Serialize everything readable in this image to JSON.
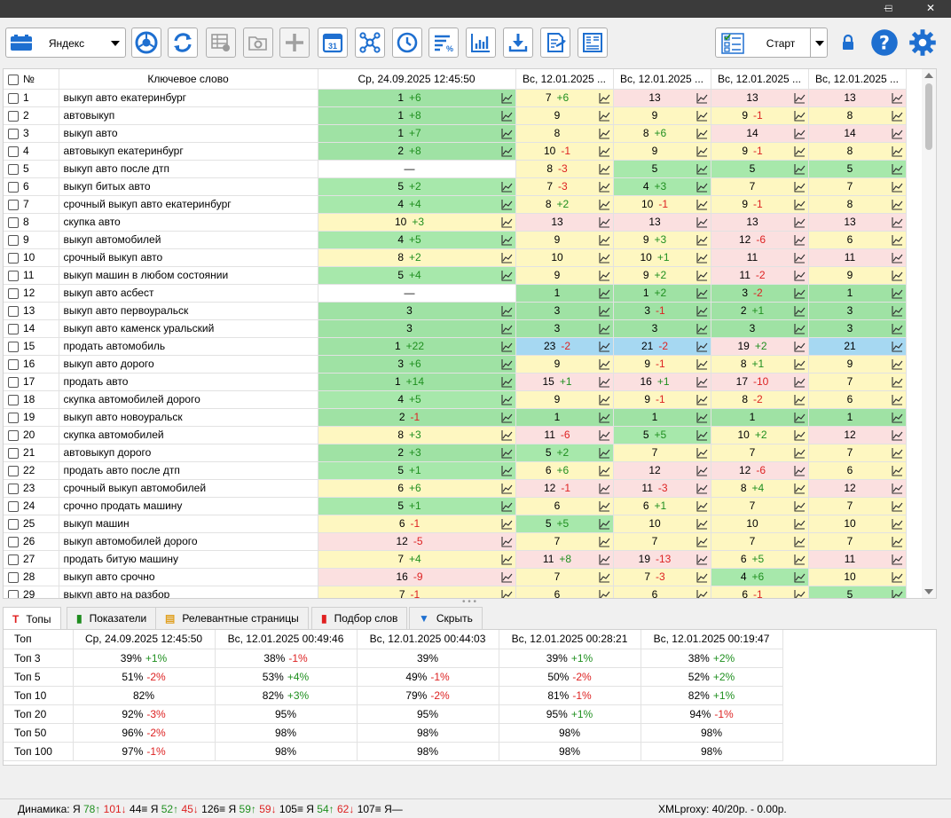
{
  "window_controls": {
    "minimize": "─",
    "maximize": "□",
    "close": "✕"
  },
  "toolbar": {
    "engine_label": "Яндекс",
    "start_label": "Старт",
    "icons": [
      "chrome-icon",
      "refresh-icon",
      "table-settings-icon",
      "folder-settings-icon",
      "add-icon",
      "calendar-icon",
      "network-icon",
      "clock-icon",
      "sort-percent-icon",
      "chart-bar-icon",
      "download-icon",
      "export-icon",
      "report-icon"
    ],
    "calendar_day": "31"
  },
  "grid": {
    "header_num": "№",
    "header_keyword": "Ключевое слово",
    "columns": [
      "Ср, 24.09.2025 12:45:50",
      "Вс, 12.01.2025 ...",
      "Вс, 12.01.2025 ...",
      "Вс, 12.01.2025 ...",
      "Вс, 12.01.2025 ..."
    ],
    "rows": [
      {
        "n": "1",
        "kw": "выкуп авто екатеринбург",
        "c": [
          [
            "1",
            "+6",
            "G"
          ],
          [
            "7",
            "+6",
            "Y"
          ],
          [
            "13",
            "",
            "P"
          ],
          [
            "13",
            "",
            "P"
          ],
          [
            "13",
            "",
            "P"
          ]
        ]
      },
      {
        "n": "2",
        "kw": "автовыкуп",
        "c": [
          [
            "1",
            "+8",
            "G"
          ],
          [
            "9",
            "",
            "Y"
          ],
          [
            "9",
            "",
            "Y"
          ],
          [
            "9",
            "-1",
            "Y"
          ],
          [
            "8",
            "",
            "Y"
          ]
        ]
      },
      {
        "n": "3",
        "kw": "выкуп авто",
        "c": [
          [
            "1",
            "+7",
            "G"
          ],
          [
            "8",
            "",
            "Y"
          ],
          [
            "8",
            "+6",
            "Y"
          ],
          [
            "14",
            "",
            "P"
          ],
          [
            "14",
            "",
            "P"
          ]
        ]
      },
      {
        "n": "4",
        "kw": "автовыкуп екатеринбург",
        "c": [
          [
            "2",
            "+8",
            "G"
          ],
          [
            "10",
            "-1",
            "Y"
          ],
          [
            "9",
            "",
            "Y"
          ],
          [
            "9",
            "-1",
            "Y"
          ],
          [
            "8",
            "",
            "Y"
          ]
        ]
      },
      {
        "n": "5",
        "kw": "выкуп авто после дтп",
        "c": [
          [
            "—",
            "",
            "W"
          ],
          [
            "8",
            "-3",
            "Y"
          ],
          [
            "5",
            "",
            "L"
          ],
          [
            "5",
            "",
            "L"
          ],
          [
            "5",
            "",
            "L"
          ]
        ]
      },
      {
        "n": "6",
        "kw": "выкуп битых авто",
        "c": [
          [
            "5",
            "+2",
            "L"
          ],
          [
            "7",
            "-3",
            "Y"
          ],
          [
            "4",
            "+3",
            "L"
          ],
          [
            "7",
            "",
            "Y"
          ],
          [
            "7",
            "",
            "Y"
          ]
        ]
      },
      {
        "n": "7",
        "kw": "срочный выкуп авто екатеринбург",
        "c": [
          [
            "4",
            "+4",
            "L"
          ],
          [
            "8",
            "+2",
            "Y"
          ],
          [
            "10",
            "-1",
            "Y"
          ],
          [
            "9",
            "-1",
            "Y"
          ],
          [
            "8",
            "",
            "Y"
          ]
        ]
      },
      {
        "n": "8",
        "kw": "скупка авто",
        "c": [
          [
            "10",
            "+3",
            "Y"
          ],
          [
            "13",
            "",
            "P"
          ],
          [
            "13",
            "",
            "P"
          ],
          [
            "13",
            "",
            "P"
          ],
          [
            "13",
            "",
            "P"
          ]
        ]
      },
      {
        "n": "9",
        "kw": "выкуп автомобилей",
        "c": [
          [
            "4",
            "+5",
            "L"
          ],
          [
            "9",
            "",
            "Y"
          ],
          [
            "9",
            "+3",
            "Y"
          ],
          [
            "12",
            "-6",
            "P"
          ],
          [
            "6",
            "",
            "Y"
          ]
        ]
      },
      {
        "n": "10",
        "kw": "срочный выкуп авто",
        "c": [
          [
            "8",
            "+2",
            "Y"
          ],
          [
            "10",
            "",
            "Y"
          ],
          [
            "10",
            "+1",
            "Y"
          ],
          [
            "11",
            "",
            "P"
          ],
          [
            "11",
            "",
            "P"
          ]
        ]
      },
      {
        "n": "11",
        "kw": "выкуп машин в любом состоянии",
        "c": [
          [
            "5",
            "+4",
            "L"
          ],
          [
            "9",
            "",
            "Y"
          ],
          [
            "9",
            "+2",
            "Y"
          ],
          [
            "11",
            "-2",
            "P"
          ],
          [
            "9",
            "",
            "Y"
          ]
        ]
      },
      {
        "n": "12",
        "kw": "выкуп авто асбест",
        "c": [
          [
            "—",
            "",
            "W"
          ],
          [
            "1",
            "",
            "G"
          ],
          [
            "1",
            "+2",
            "G"
          ],
          [
            "3",
            "-2",
            "G"
          ],
          [
            "1",
            "",
            "G"
          ]
        ]
      },
      {
        "n": "13",
        "kw": "выкуп авто первоуральск",
        "c": [
          [
            "3",
            "",
            "G"
          ],
          [
            "3",
            "",
            "G"
          ],
          [
            "3",
            "-1",
            "G"
          ],
          [
            "2",
            "+1",
            "G"
          ],
          [
            "3",
            "",
            "G"
          ]
        ]
      },
      {
        "n": "14",
        "kw": "выкуп авто каменск уральский",
        "c": [
          [
            "3",
            "",
            "G"
          ],
          [
            "3",
            "",
            "G"
          ],
          [
            "3",
            "",
            "G"
          ],
          [
            "3",
            "",
            "G"
          ],
          [
            "3",
            "",
            "G"
          ]
        ]
      },
      {
        "n": "15",
        "kw": "продать автомобиль",
        "c": [
          [
            "1",
            "+22",
            "G"
          ],
          [
            "23",
            "-2",
            "B"
          ],
          [
            "21",
            "-2",
            "B"
          ],
          [
            "19",
            "+2",
            "P"
          ],
          [
            "21",
            "",
            "B"
          ]
        ]
      },
      {
        "n": "16",
        "kw": "выкуп авто дорого",
        "c": [
          [
            "3",
            "+6",
            "G"
          ],
          [
            "9",
            "",
            "Y"
          ],
          [
            "9",
            "-1",
            "Y"
          ],
          [
            "8",
            "+1",
            "Y"
          ],
          [
            "9",
            "",
            "Y"
          ]
        ]
      },
      {
        "n": "17",
        "kw": "продать авто",
        "c": [
          [
            "1",
            "+14",
            "G"
          ],
          [
            "15",
            "+1",
            "P"
          ],
          [
            "16",
            "+1",
            "P"
          ],
          [
            "17",
            "-10",
            "P"
          ],
          [
            "7",
            "",
            "Y"
          ]
        ]
      },
      {
        "n": "18",
        "kw": "скупка автомобилей дорого",
        "c": [
          [
            "4",
            "+5",
            "L"
          ],
          [
            "9",
            "",
            "Y"
          ],
          [
            "9",
            "-1",
            "Y"
          ],
          [
            "8",
            "-2",
            "Y"
          ],
          [
            "6",
            "",
            "Y"
          ]
        ]
      },
      {
        "n": "19",
        "kw": "выкуп авто новоуральск",
        "c": [
          [
            "2",
            "-1",
            "G"
          ],
          [
            "1",
            "",
            "G"
          ],
          [
            "1",
            "",
            "G"
          ],
          [
            "1",
            "",
            "G"
          ],
          [
            "1",
            "",
            "G"
          ]
        ]
      },
      {
        "n": "20",
        "kw": "скупка автомобилей",
        "c": [
          [
            "8",
            "+3",
            "Y"
          ],
          [
            "11",
            "-6",
            "P"
          ],
          [
            "5",
            "+5",
            "L"
          ],
          [
            "10",
            "+2",
            "Y"
          ],
          [
            "12",
            "",
            "P"
          ]
        ]
      },
      {
        "n": "21",
        "kw": "автовыкуп дорого",
        "c": [
          [
            "2",
            "+3",
            "G"
          ],
          [
            "5",
            "+2",
            "L"
          ],
          [
            "7",
            "",
            "Y"
          ],
          [
            "7",
            "",
            "Y"
          ],
          [
            "7",
            "",
            "Y"
          ]
        ]
      },
      {
        "n": "22",
        "kw": "продать авто после дтп",
        "c": [
          [
            "5",
            "+1",
            "L"
          ],
          [
            "6",
            "+6",
            "Y"
          ],
          [
            "12",
            "",
            "P"
          ],
          [
            "12",
            "-6",
            "P"
          ],
          [
            "6",
            "",
            "Y"
          ]
        ]
      },
      {
        "n": "23",
        "kw": "срочный выкуп автомобилей",
        "c": [
          [
            "6",
            "+6",
            "Y"
          ],
          [
            "12",
            "-1",
            "P"
          ],
          [
            "11",
            "-3",
            "P"
          ],
          [
            "8",
            "+4",
            "Y"
          ],
          [
            "12",
            "",
            "P"
          ]
        ]
      },
      {
        "n": "24",
        "kw": "срочно продать машину",
        "c": [
          [
            "5",
            "+1",
            "L"
          ],
          [
            "6",
            "",
            "Y"
          ],
          [
            "6",
            "+1",
            "Y"
          ],
          [
            "7",
            "",
            "Y"
          ],
          [
            "7",
            "",
            "Y"
          ]
        ]
      },
      {
        "n": "25",
        "kw": "выкуп машин",
        "c": [
          [
            "6",
            "-1",
            "Y"
          ],
          [
            "5",
            "+5",
            "L"
          ],
          [
            "10",
            "",
            "Y"
          ],
          [
            "10",
            "",
            "Y"
          ],
          [
            "10",
            "",
            "Y"
          ]
        ]
      },
      {
        "n": "26",
        "kw": "выкуп автомобилей дорого",
        "c": [
          [
            "12",
            "-5",
            "P"
          ],
          [
            "7",
            "",
            "Y"
          ],
          [
            "7",
            "",
            "Y"
          ],
          [
            "7",
            "",
            "Y"
          ],
          [
            "7",
            "",
            "Y"
          ]
        ]
      },
      {
        "n": "27",
        "kw": "продать битую машину",
        "c": [
          [
            "7",
            "+4",
            "Y"
          ],
          [
            "11",
            "+8",
            "P"
          ],
          [
            "19",
            "-13",
            "P"
          ],
          [
            "6",
            "+5",
            "Y"
          ],
          [
            "11",
            "",
            "P"
          ]
        ]
      },
      {
        "n": "28",
        "kw": "выкуп авто срочно",
        "c": [
          [
            "16",
            "-9",
            "P"
          ],
          [
            "7",
            "",
            "Y"
          ],
          [
            "7",
            "-3",
            "Y"
          ],
          [
            "4",
            "+6",
            "L"
          ],
          [
            "10",
            "",
            "Y"
          ]
        ]
      },
      {
        "n": "29",
        "kw": "выкуп авто на разбор",
        "c": [
          [
            "7",
            "-1",
            "Y"
          ],
          [
            "6",
            "",
            "Y"
          ],
          [
            "6",
            "",
            "Y"
          ],
          [
            "6",
            "-1",
            "Y"
          ],
          [
            "5",
            "",
            "L"
          ]
        ]
      }
    ]
  },
  "tabs": [
    {
      "label": "Топы",
      "icon": "T",
      "color": "#e02020"
    },
    {
      "label": "Показатели",
      "icon": "▮",
      "color": "#1e8c1e"
    },
    {
      "label": "Релевантные страницы",
      "icon": "▤",
      "color": "#e0a020"
    },
    {
      "label": "Подбор слов",
      "icon": "▮",
      "color": "#e02020"
    },
    {
      "label": "Скрыть",
      "icon": "▼",
      "color": "#1e6fd0"
    }
  ],
  "tops": {
    "header": [
      "Топ",
      "Ср, 24.09.2025 12:45:50",
      "Вс, 12.01.2025 00:49:46",
      "Вс, 12.01.2025 00:44:03",
      "Вс, 12.01.2025 00:28:21",
      "Вс, 12.01.2025 00:19:47"
    ],
    "rows": [
      {
        "label": "Топ 3",
        "v": [
          [
            "39%",
            "+1%"
          ],
          [
            "38%",
            "-1%"
          ],
          [
            "39%",
            ""
          ],
          [
            "39%",
            "+1%"
          ],
          [
            "38%",
            "+2%"
          ]
        ]
      },
      {
        "label": "Топ 5",
        "v": [
          [
            "51%",
            "-2%"
          ],
          [
            "53%",
            "+4%"
          ],
          [
            "49%",
            "-1%"
          ],
          [
            "50%",
            "-2%"
          ],
          [
            "52%",
            "+2%"
          ]
        ]
      },
      {
        "label": "Топ 10",
        "v": [
          [
            "82%",
            ""
          ],
          [
            "82%",
            "+3%"
          ],
          [
            "79%",
            "-2%"
          ],
          [
            "81%",
            "-1%"
          ],
          [
            "82%",
            "+1%"
          ]
        ]
      },
      {
        "label": "Топ 20",
        "v": [
          [
            "92%",
            "-3%"
          ],
          [
            "95%",
            ""
          ],
          [
            "95%",
            ""
          ],
          [
            "95%",
            "+1%"
          ],
          [
            "94%",
            "-1%"
          ]
        ]
      },
      {
        "label": "Топ 50",
        "v": [
          [
            "96%",
            "-2%"
          ],
          [
            "98%",
            ""
          ],
          [
            "98%",
            ""
          ],
          [
            "98%",
            ""
          ],
          [
            "98%",
            ""
          ]
        ]
      },
      {
        "label": "Топ 100",
        "v": [
          [
            "97%",
            "-1%"
          ],
          [
            "98%",
            ""
          ],
          [
            "98%",
            ""
          ],
          [
            "98%",
            ""
          ],
          [
            "98%",
            ""
          ]
        ]
      }
    ]
  },
  "status": {
    "dyn_label": "Динамика:",
    "groups": [
      {
        "e": "Я",
        "up": "78↑",
        "down": "101↓",
        "eq": "44≡"
      },
      {
        "e": "Я",
        "up": "52↑",
        "down": "45↓",
        "eq": "126≡"
      },
      {
        "e": "Я",
        "up": "59↑",
        "down": "59↓",
        "eq": "105≡"
      },
      {
        "e": "Я",
        "up": "54↑",
        "down": "62↓",
        "eq": "107≡"
      }
    ],
    "tail": "Я—",
    "proxy": "XMLproxy: 40/20р. - 0.00р."
  },
  "colors": {
    "green": "#9fe2a4",
    "yellow": "#fef7c1",
    "pink": "#fbe0e0",
    "blue": "#a6d8f2",
    "accent": "#1e6fd0"
  }
}
